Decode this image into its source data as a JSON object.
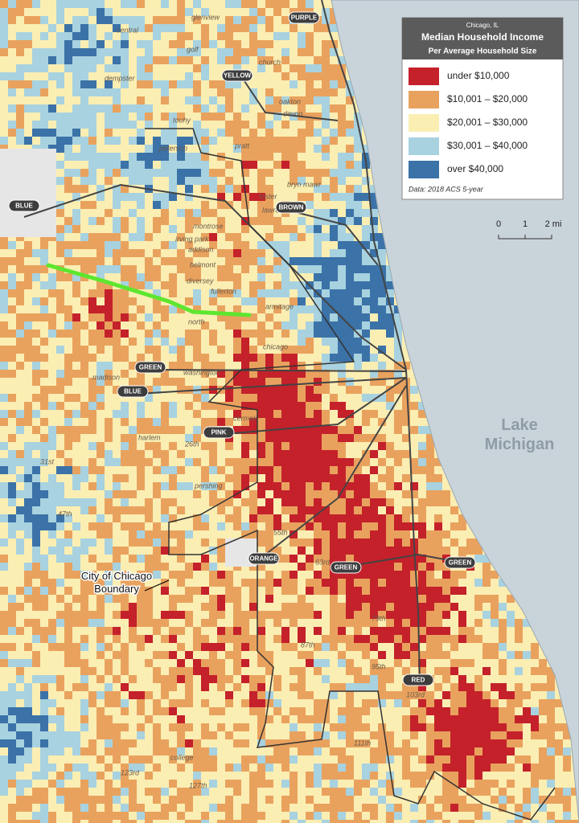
{
  "legend": {
    "place": "Chicago, IL",
    "title": "Median Household Income",
    "subtitle": "Per Average Household Size",
    "items": [
      {
        "label": "under $10,000",
        "color": "#c4212b"
      },
      {
        "label": "$10,001 – $20,000",
        "color": "#e9a25e"
      },
      {
        "label": "$20,001 – $30,000",
        "color": "#fbeeb3"
      },
      {
        "label": "$30,001 – $40,000",
        "color": "#a8d2df"
      },
      {
        "label": "over $40,000",
        "color": "#3b72a7"
      }
    ],
    "source": "Data: 2018 ACS 5-year"
  },
  "scale": {
    "ticks": [
      "0",
      "1",
      "2 mi"
    ]
  },
  "lake": [
    "Lake",
    "Michigan"
  ],
  "boundary": [
    "City of Chicago",
    "Boundary"
  ],
  "lines": [
    "PURPLE",
    "YELLOW",
    "BLUE",
    "BROWN",
    "GREEN",
    "BLUE",
    "PINK",
    "ORANGE",
    "GREEN",
    "GREEN",
    "RED"
  ],
  "streets": [
    "glenview",
    "central",
    "golf",
    "dempster",
    "church",
    "oakton",
    "touhy",
    "devon",
    "pratt",
    "peterson",
    "bryn mawr",
    "foster",
    "lawrence",
    "montrose",
    "irving park",
    "addison",
    "belmont",
    "diversey",
    "fullerton",
    "armitage",
    "north",
    "chicago",
    "washington",
    "madison",
    "26th",
    "cermak",
    "harlem",
    "pershing",
    "31st",
    "47th",
    "55th",
    "63rd",
    "79th",
    "87th",
    "95th",
    "103rd",
    "111th",
    "123rd",
    "127th",
    "college"
  ]
}
